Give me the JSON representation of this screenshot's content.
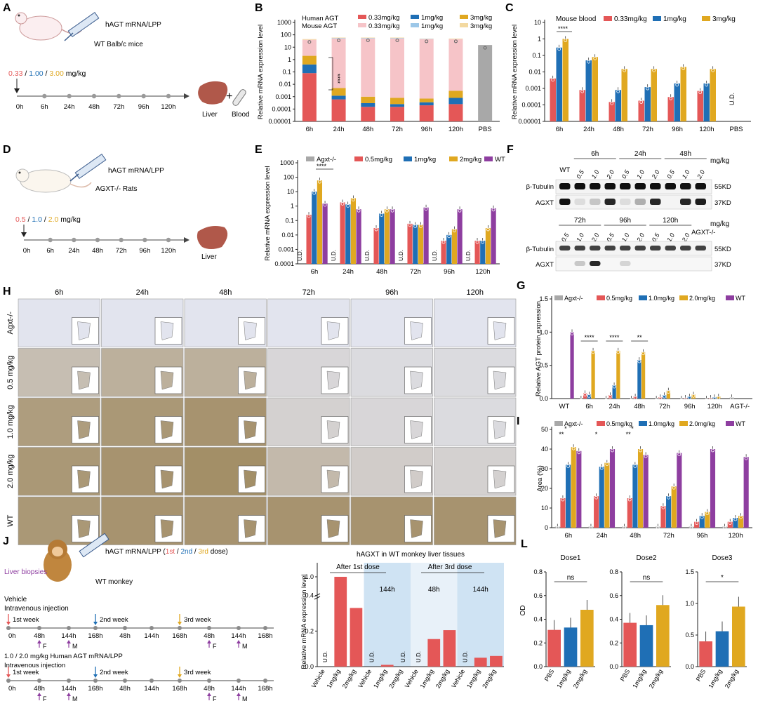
{
  "colors": {
    "red": "#e45757",
    "blue": "#1f6fb5",
    "gold": "#e0a820",
    "purple": "#8e3ea0",
    "grey": "#a8a8a8",
    "pink": "#f6c4c8",
    "lightblue": "#9cc7e8",
    "lightgold": "#f3d9a0",
    "shade": "#cfe3f3",
    "lightshade": "#e8f1f9"
  },
  "panels": {
    "A": {
      "letter": "A",
      "treatment": "hAGT mRNA/LPP",
      "animal": "WT Balb/c mice",
      "doses": [
        "0.33",
        "1.00",
        "3.00"
      ],
      "dose_unit": "mg/kg",
      "timepoints": [
        "0h",
        "6h",
        "24h",
        "48h",
        "72h",
        "96h",
        "120h"
      ],
      "organ": "Liver",
      "plus": "+",
      "sample": "Blood"
    },
    "D": {
      "letter": "D",
      "treatment": "hAGT mRNA/LPP",
      "animal": "AGXT-/- Rats",
      "doses": [
        "0.5",
        "1.0",
        "2.0"
      ],
      "dose_unit": "mg/kg",
      "timepoints": [
        "0h",
        "6h",
        "24h",
        "48h",
        "72h",
        "96h",
        "120h"
      ],
      "organ": "Liver"
    },
    "F": {
      "letter": "F",
      "unit": "mg/kg",
      "top_lanes": [
        "WT",
        "0.5",
        "1.0",
        "2.0",
        "0.5",
        "1.0",
        "2.0",
        "0.5",
        "1.0",
        "2.0"
      ],
      "top_times": [
        "6h",
        "24h",
        "48h"
      ],
      "bottom_lanes": [
        "0.5",
        "1.0",
        "2.0",
        "0.5",
        "1.0",
        "2.0",
        "0.5",
        "1.0",
        "2.0",
        "AGXT-/-"
      ],
      "bottom_times": [
        "72h",
        "96h",
        "120h"
      ],
      "proteins": [
        "β-Tubulin",
        "AGXT"
      ],
      "weights": [
        "55KD",
        "37KD"
      ]
    },
    "H": {
      "letter": "H",
      "columns": [
        "6h",
        "24h",
        "48h",
        "72h",
        "96h",
        "120h"
      ],
      "rows": [
        "Agxt-/-",
        "0.5 mg/kg",
        "1.0 mg/kg",
        "2.0 mg/kg",
        "WT"
      ],
      "stain_intensity": [
        [
          0,
          0,
          0,
          0,
          0,
          0
        ],
        [
          0.4,
          0.55,
          0.55,
          0.15,
          0.1,
          0.1
        ],
        [
          0.75,
          0.8,
          0.85,
          0.2,
          0.15,
          0.1
        ],
        [
          0.8,
          0.85,
          0.9,
          0.45,
          0.25,
          0.2
        ],
        [
          0.8,
          0.85,
          0.85,
          0.85,
          0.85,
          0.85
        ]
      ]
    },
    "J": {
      "letter": "J",
      "treatment_prefix": "hAGT mRNA/LPP (",
      "doses": [
        "1st",
        "2nd",
        "3rd"
      ],
      "dose_suffix": "dose)",
      "biopsy": "Liver biopsies",
      "animal": "WT monkey",
      "vehicle_title": "Vehicle",
      "vehicle_route": "Intravenous injection",
      "treat_title": "1.0 / 2.0 mg/kg Human AGT mRNA/LPP",
      "treat_route": "Intravenous injection",
      "weeks": [
        "1st week",
        "2nd week",
        "3rd week"
      ],
      "ticks": [
        "0h",
        "48h",
        "144h",
        "168h",
        "48h",
        "144h",
        "168h",
        "48h",
        "144h",
        "168h"
      ],
      "sex_marks": [
        "F",
        "M",
        "F",
        "M"
      ]
    }
  },
  "chart_data": [
    {
      "id": "B",
      "type": "bar",
      "stacked": true,
      "title": "",
      "ylabel": "Relative mRNA expression level",
      "yscale": "log",
      "ylim": [
        1e-05,
        1000
      ],
      "yticks": [
        "0.00001",
        "0.0001",
        "0.001",
        "0.01",
        "0.1",
        "1",
        "10",
        "100",
        "1000"
      ],
      "categories": [
        "6h",
        "24h",
        "48h",
        "72h",
        "96h",
        "120h",
        "PBS"
      ],
      "legend_groups": [
        "Human AGT",
        "Mouse AGT"
      ],
      "legend_doses": [
        "0.33mg/kg",
        "1mg/kg",
        "3mg/kg"
      ],
      "series": [
        {
          "name": "Human AGT 0.33mg/kg",
          "values": [
            0.08,
            0.0006,
            0.00015,
            0.00015,
            0.0002,
            0.00025,
            null
          ]
        },
        {
          "name": "Human AGT 1mg/kg",
          "values": [
            0.4,
            0.0012,
            0.0003,
            0.00025,
            0.00035,
            0.0008,
            null
          ]
        },
        {
          "name": "Human AGT 3mg/kg",
          "values": [
            2.0,
            0.005,
            0.001,
            0.0008,
            0.0007,
            0.003,
            null
          ]
        },
        {
          "name": "Mouse AGT 0.33mg/kg",
          "values": [
            40,
            50,
            50,
            50,
            45,
            45,
            null
          ]
        },
        {
          "name": "Mouse AGT 1mg/kg",
          "values": [
            40,
            55,
            55,
            55,
            48,
            45,
            null
          ]
        },
        {
          "name": "Mouse AGT 3mg/kg",
          "values": [
            45,
            60,
            60,
            60,
            50,
            50,
            null
          ]
        },
        {
          "name": "PBS",
          "values": [
            null,
            null,
            null,
            null,
            null,
            null,
            15
          ]
        }
      ],
      "annotation": "****"
    },
    {
      "id": "C",
      "type": "bar",
      "ylabel": "Relative mRNA expression level",
      "yscale": "log",
      "ylim": [
        1e-05,
        10
      ],
      "yticks": [
        "0.00001",
        "0.0001",
        "0.001",
        "0.01",
        "0.1",
        "1",
        "10"
      ],
      "categories": [
        "6h",
        "24h",
        "48h",
        "72h",
        "96h",
        "120h",
        "PBS"
      ],
      "legend_title": "Mouse blood",
      "series": [
        {
          "name": "0.33mg/kg",
          "values": [
            0.004,
            0.0008,
            0.00015,
            0.00018,
            0.0003,
            0.0007,
            null
          ]
        },
        {
          "name": "1mg/kg",
          "values": [
            0.3,
            0.05,
            0.0008,
            0.0012,
            0.002,
            0.002,
            null
          ]
        },
        {
          "name": "3mg/kg",
          "values": [
            1.0,
            0.08,
            0.015,
            0.015,
            0.02,
            0.015,
            null
          ]
        }
      ],
      "not_detected": "U.D.",
      "annotation": "****"
    },
    {
      "id": "E",
      "type": "bar",
      "ylabel": "Relative mRNA expression level",
      "yscale": "log",
      "ylim": [
        0.0001,
        1000
      ],
      "yticks": [
        "0.0001",
        "0.001",
        "0.01",
        "0.1",
        "1",
        "10",
        "100",
        "1000"
      ],
      "categories": [
        "6h",
        "24h",
        "48h",
        "72h",
        "96h",
        "120h"
      ],
      "series": [
        {
          "name": "Agxt-/-",
          "values": [
            null,
            null,
            null,
            null,
            null,
            null
          ]
        },
        {
          "name": "0.5mg/kg",
          "values": [
            0.25,
            1.8,
            0.03,
            0.06,
            0.004,
            0.004
          ]
        },
        {
          "name": "1mg/kg",
          "values": [
            10,
            1.3,
            0.3,
            0.05,
            0.01,
            0.004
          ]
        },
        {
          "name": "2mg/kg",
          "values": [
            60,
            3.5,
            0.6,
            0.05,
            0.025,
            0.03
          ]
        },
        {
          "name": "WT",
          "values": [
            1.5,
            0.6,
            0.6,
            0.8,
            0.6,
            0.7
          ]
        }
      ],
      "not_detected": "U.D.",
      "annotation": "****"
    },
    {
      "id": "G",
      "type": "bar",
      "ylabel": "Relative AGT protein expression",
      "ylim": [
        0,
        1.5
      ],
      "yticks": [
        "0.0",
        "0.5",
        "1.0",
        "1.5"
      ],
      "categories": [
        "WT",
        "6h",
        "24h",
        "48h",
        "72h",
        "96h",
        "120h",
        "AGT-/-"
      ],
      "series": [
        {
          "name": "Agxt-/-",
          "values": [
            null,
            0,
            0,
            0,
            0,
            0,
            0,
            0.02
          ]
        },
        {
          "name": "0.5mg/kg",
          "values": [
            null,
            0.08,
            0.05,
            0.03,
            0.02,
            0.01,
            0.01,
            null
          ]
        },
        {
          "name": "1.0mg/kg",
          "values": [
            null,
            0.06,
            0.2,
            0.58,
            0.05,
            0.03,
            0.02,
            null
          ]
        },
        {
          "name": "2.0mg/kg",
          "values": [
            null,
            0.72,
            0.72,
            0.7,
            0.12,
            0.06,
            0.03,
            null
          ]
        },
        {
          "name": "WT",
          "values": [
            1.0,
            null,
            null,
            null,
            null,
            null,
            null,
            null
          ]
        }
      ],
      "annotations": [
        "****",
        "****",
        "**"
      ]
    },
    {
      "id": "I",
      "type": "bar",
      "ylabel": "Area (%)",
      "ylim": [
        0,
        50
      ],
      "yticks": [
        "0",
        "10",
        "20",
        "30",
        "40",
        "50"
      ],
      "categories": [
        "6h",
        "24h",
        "48h",
        "72h",
        "96h",
        "120h"
      ],
      "series": [
        {
          "name": "Agxt-/-",
          "values": [
            0.5,
            0.5,
            0.5,
            0.5,
            0.5,
            0.5
          ]
        },
        {
          "name": "0.5mg/kg",
          "values": [
            15,
            16,
            15,
            11,
            3,
            3
          ]
        },
        {
          "name": "1.0mg/kg",
          "values": [
            32,
            31,
            32,
            16,
            6,
            5
          ]
        },
        {
          "name": "2.0mg/kg",
          "values": [
            41,
            33,
            40,
            21,
            8,
            6
          ]
        },
        {
          "name": "WT",
          "values": [
            39,
            40,
            37,
            38,
            40,
            36
          ]
        }
      ],
      "annotations": [
        "**",
        "*",
        "*",
        "**",
        "*"
      ]
    },
    {
      "id": "K",
      "type": "bar",
      "title": "hAGXT in WT monkey liver tissues",
      "ylabel": "Relative mRNA expression level",
      "yticks": [
        "0.0",
        "0.2",
        "0.4",
        "1.0"
      ],
      "ylim": [
        0,
        1.0
      ],
      "dose_headers": [
        "After 1st dose",
        "After 3rd dose"
      ],
      "time_headers": [
        "48h",
        "144h",
        "48h",
        "144h"
      ],
      "categories": [
        "Vehicle",
        "1mg/kg",
        "2mg/kg",
        "Vehicle",
        "1mg/kg",
        "2mg/kg",
        "Vehicle",
        "1mg/kg",
        "2mg/kg",
        "Vehicle",
        "1mg/kg",
        "2mg/kg"
      ],
      "values": [
        null,
        1.0,
        0.33,
        null,
        0.01,
        null,
        null,
        0.155,
        0.205,
        null,
        0.05,
        0.06
      ],
      "not_detected": "U.D."
    },
    {
      "id": "L",
      "type": "bar",
      "ylabel": "OD",
      "subplots": [
        {
          "title": "Dose1",
          "ylim": [
            0,
            0.8
          ],
          "yticks": [
            "0.0",
            "0.2",
            "0.4",
            "0.6",
            "0.8"
          ],
          "categories": [
            "PBS",
            "1mg/kg",
            "2mg/kg"
          ],
          "values": [
            0.31,
            0.33,
            0.48
          ],
          "sig": "ns"
        },
        {
          "title": "Dose2",
          "ylim": [
            0,
            0.8
          ],
          "yticks": [
            "0.0",
            "0.2",
            "0.4",
            "0.6",
            "0.8"
          ],
          "categories": [
            "PBS",
            "1mg/kg",
            "2mg/kg"
          ],
          "values": [
            0.37,
            0.35,
            0.52
          ],
          "sig": "ns"
        },
        {
          "title": "Dose3",
          "ylim": [
            0,
            1.5
          ],
          "yticks": [
            "0.0",
            "0.5",
            "1.0",
            "1.5"
          ],
          "categories": [
            "PBS",
            "1mg/kg",
            "2mg/kg"
          ],
          "values": [
            0.4,
            0.56,
            0.95
          ],
          "sig": "*"
        }
      ]
    }
  ]
}
